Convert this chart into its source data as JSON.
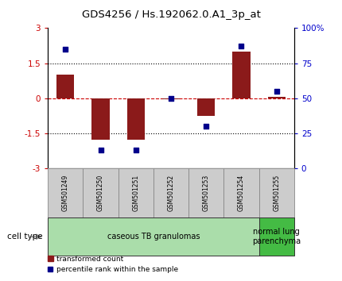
{
  "title": "GDS4256 / Hs.192062.0.A1_3p_at",
  "samples": [
    "GSM501249",
    "GSM501250",
    "GSM501251",
    "GSM501252",
    "GSM501253",
    "GSM501254",
    "GSM501255"
  ],
  "transformed_count": [
    1.0,
    -1.75,
    -1.75,
    -0.05,
    -0.75,
    2.0,
    0.05
  ],
  "percentile_rank": [
    85,
    13,
    13,
    50,
    30,
    87,
    55
  ],
  "ylim_left": [
    -3,
    3
  ],
  "ylim_right": [
    0,
    100
  ],
  "left_yticks": [
    -3,
    -1.5,
    0,
    1.5,
    3
  ],
  "right_yticks": [
    0,
    25,
    50,
    75,
    100
  ],
  "right_yticklabels": [
    "0",
    "25",
    "50",
    "75",
    "100%"
  ],
  "bar_color": "#8B1A1A",
  "scatter_color": "#00008B",
  "zero_line_color": "#CC0000",
  "dotted_line_color": "#000000",
  "cell_type_groups": [
    {
      "label": "caseous TB granulomas",
      "start": 0,
      "end": 5,
      "color": "#AADDAA"
    },
    {
      "label": "normal lung\nparenchyma",
      "start": 6,
      "end": 6,
      "color": "#44BB44"
    }
  ],
  "legend_bar_label": "transformed count",
  "legend_scatter_label": "percentile rank within the sample",
  "cell_type_label": "cell type",
  "background_color": "#ffffff",
  "grid_dotted_at": [
    -1.5,
    1.5
  ],
  "bar_width": 0.5,
  "sample_box_color": "#CCCCCC",
  "sample_box_edge": "#888888"
}
